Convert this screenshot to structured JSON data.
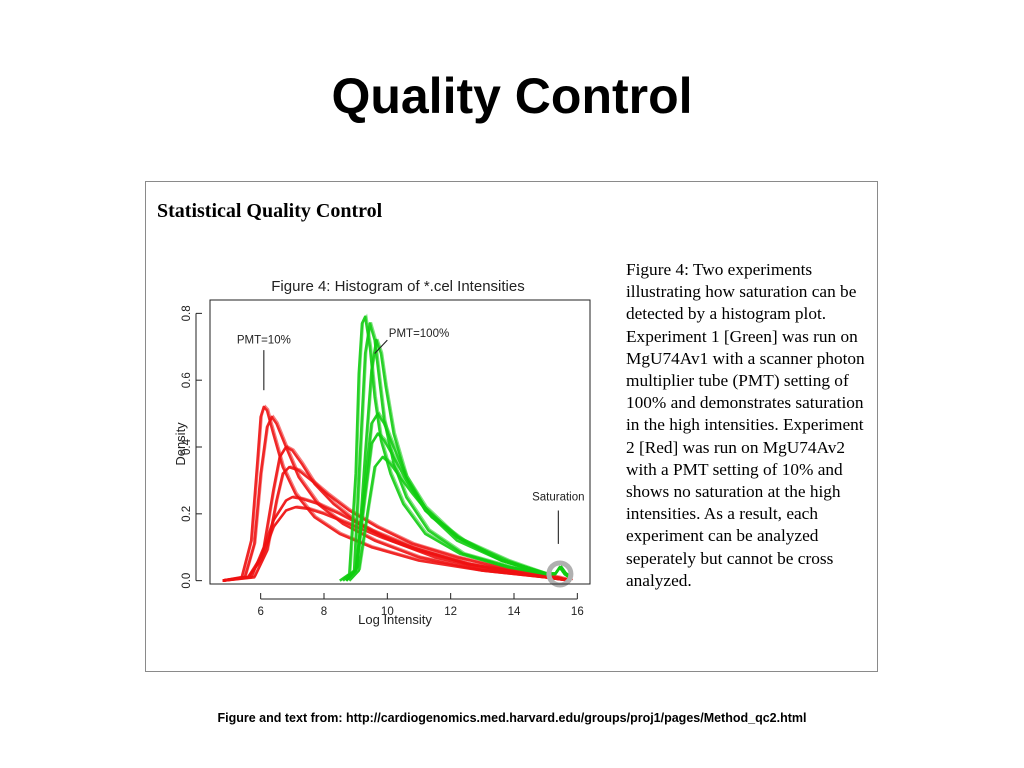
{
  "slide": {
    "title": "Quality Control",
    "source_note": "Figure and text from: http://cardiogenomics.med.harvard.edu/groups/proj1/pages/Method_qc2.html"
  },
  "panel": {
    "heading": "Statistical Quality Control",
    "caption": "Figure 4:   Two experiments illustrating how saturation can be detected by a histogram plot. Experiment 1 [Green] was run on MgU74Av1 with a scanner photon multiplier tube (PMT) setting of 100% and demonstrates saturation in the high intensities. Experiment 2 [Red] was run on MgU74Av2 with a PMT setting of 10% and shows no saturation at the high intensities. As a result, each experiment can be analyzed seperately but cannot be cross analyzed."
  },
  "chart_data": {
    "type": "line",
    "title": "Figure 4: Histogram of *.cel Intensities",
    "xlabel": "Log Intensity",
    "ylabel": "Density",
    "xlim": [
      4.4,
      16.4
    ],
    "ylim": [
      -0.01,
      0.84
    ],
    "xticks": [
      6,
      8,
      10,
      12,
      14,
      16
    ],
    "yticks": [
      0.0,
      0.2,
      0.4,
      0.6,
      0.8
    ],
    "grid": false,
    "colors": {
      "pmt10": "#ee1111",
      "pmt100": "#11cc11",
      "saturation_marker": "#b0b0b0"
    },
    "annotations": [
      {
        "id": "pmt10",
        "text": "PMT=10%",
        "x": 6.1,
        "y": 0.71
      },
      {
        "id": "pmt100",
        "text": "PMT=100%",
        "x": 11.0,
        "y": 0.73
      },
      {
        "id": "saturation",
        "text": "Saturation",
        "x": 15.4,
        "y": 0.24
      }
    ],
    "series": [
      {
        "x": [
          4.8,
          5.4,
          5.7,
          5.9,
          6.0,
          6.1,
          6.2,
          6.4,
          6.7,
          7.1,
          7.7,
          8.5,
          9.5,
          11.0,
          13.0,
          15.0,
          15.8
        ],
        "values": [
          0.0,
          0.01,
          0.12,
          0.36,
          0.49,
          0.52,
          0.51,
          0.44,
          0.34,
          0.26,
          0.19,
          0.14,
          0.1,
          0.06,
          0.03,
          0.01,
          0.0
        ],
        "group": "pmt10"
      },
      {
        "x": [
          4.8,
          5.5,
          5.8,
          6.0,
          6.2,
          6.35,
          6.5,
          6.8,
          7.2,
          7.8,
          8.6,
          9.6,
          11.0,
          13.0,
          15.0,
          15.8
        ],
        "values": [
          0.0,
          0.01,
          0.11,
          0.32,
          0.46,
          0.49,
          0.47,
          0.4,
          0.31,
          0.23,
          0.17,
          0.12,
          0.07,
          0.03,
          0.01,
          0.0
        ],
        "group": "pmt10"
      },
      {
        "x": [
          4.8,
          5.7,
          6.1,
          6.4,
          6.6,
          6.8,
          7.0,
          7.3,
          7.7,
          8.3,
          9.1,
          10.1,
          11.5,
          13.3,
          15.0,
          15.8
        ],
        "values": [
          0.0,
          0.01,
          0.1,
          0.27,
          0.37,
          0.4,
          0.39,
          0.35,
          0.29,
          0.23,
          0.17,
          0.12,
          0.07,
          0.03,
          0.01,
          0.0
        ],
        "group": "pmt10"
      },
      {
        "x": [
          4.8,
          5.8,
          6.2,
          6.5,
          6.7,
          6.9,
          7.2,
          7.6,
          8.1,
          8.8,
          9.7,
          10.8,
          12.2,
          14.0,
          15.4,
          15.8
        ],
        "values": [
          0.0,
          0.01,
          0.09,
          0.24,
          0.32,
          0.34,
          0.33,
          0.3,
          0.26,
          0.21,
          0.16,
          0.11,
          0.07,
          0.03,
          0.01,
          0.0
        ],
        "group": "pmt10"
      },
      {
        "x": [
          4.8,
          5.6,
          6.0,
          6.4,
          6.8,
          7.0,
          7.3,
          7.8,
          8.5,
          9.5,
          10.8,
          12.5,
          14.3,
          15.8
        ],
        "values": [
          0.0,
          0.01,
          0.07,
          0.18,
          0.24,
          0.25,
          0.245,
          0.23,
          0.2,
          0.15,
          0.1,
          0.05,
          0.02,
          0.0
        ],
        "group": "pmt10"
      },
      {
        "x": [
          4.8,
          5.6,
          6.0,
          6.4,
          6.8,
          7.1,
          7.5,
          8.0,
          8.8,
          9.8,
          11.0,
          12.6,
          14.4,
          15.8
        ],
        "values": [
          0.0,
          0.01,
          0.06,
          0.16,
          0.21,
          0.22,
          0.215,
          0.2,
          0.17,
          0.13,
          0.09,
          0.05,
          0.02,
          0.0
        ],
        "group": "pmt10"
      },
      {
        "x": [
          8.5,
          8.8,
          9.0,
          9.1,
          9.2,
          9.3,
          9.45,
          9.6,
          9.8,
          10.1,
          10.5,
          11.2,
          12.3,
          13.8,
          15.0,
          15.3,
          15.45,
          15.6,
          15.75
        ],
        "values": [
          0.0,
          0.02,
          0.32,
          0.62,
          0.77,
          0.79,
          0.7,
          0.55,
          0.42,
          0.32,
          0.23,
          0.14,
          0.08,
          0.04,
          0.02,
          0.02,
          0.04,
          0.02,
          0.01
        ],
        "group": "pmt100"
      },
      {
        "x": [
          8.6,
          8.95,
          9.15,
          9.3,
          9.45,
          9.6,
          9.75,
          9.9,
          10.2,
          10.6,
          11.3,
          12.4,
          13.9,
          15.0,
          15.3,
          15.45,
          15.6,
          15.75
        ],
        "values": [
          0.0,
          0.03,
          0.4,
          0.68,
          0.77,
          0.72,
          0.6,
          0.48,
          0.35,
          0.25,
          0.15,
          0.08,
          0.04,
          0.02,
          0.02,
          0.04,
          0.02,
          0.01
        ],
        "group": "pmt100"
      },
      {
        "x": [
          8.7,
          9.05,
          9.3,
          9.5,
          9.65,
          9.8,
          9.95,
          10.2,
          10.6,
          11.2,
          12.2,
          13.6,
          15.0,
          15.3,
          15.45,
          15.6,
          15.75
        ],
        "values": [
          0.0,
          0.04,
          0.38,
          0.63,
          0.72,
          0.68,
          0.58,
          0.44,
          0.31,
          0.21,
          0.12,
          0.06,
          0.02,
          0.02,
          0.04,
          0.02,
          0.01
        ],
        "group": "pmt100"
      },
      {
        "x": [
          8.7,
          9.0,
          9.3,
          9.5,
          9.7,
          9.9,
          10.2,
          10.6,
          11.2,
          12.2,
          13.6,
          15.0,
          15.3,
          15.45,
          15.6,
          15.75
        ],
        "values": [
          0.0,
          0.03,
          0.3,
          0.47,
          0.5,
          0.47,
          0.4,
          0.31,
          0.22,
          0.13,
          0.06,
          0.02,
          0.02,
          0.04,
          0.02,
          0.01
        ],
        "group": "pmt100"
      },
      {
        "x": [
          8.7,
          9.0,
          9.3,
          9.5,
          9.7,
          9.9,
          10.2,
          10.6,
          11.2,
          12.2,
          13.6,
          15.0,
          15.3,
          15.45,
          15.6,
          15.75
        ],
        "values": [
          0.0,
          0.03,
          0.26,
          0.41,
          0.44,
          0.42,
          0.37,
          0.3,
          0.21,
          0.13,
          0.06,
          0.02,
          0.02,
          0.04,
          0.02,
          0.01
        ],
        "group": "pmt100"
      },
      {
        "x": [
          8.8,
          9.1,
          9.4,
          9.6,
          9.85,
          10.1,
          10.4,
          10.8,
          11.4,
          12.4,
          13.8,
          15.0,
          15.3,
          15.45,
          15.6,
          15.75
        ],
        "values": [
          0.0,
          0.03,
          0.22,
          0.34,
          0.37,
          0.35,
          0.31,
          0.26,
          0.19,
          0.12,
          0.06,
          0.02,
          0.02,
          0.04,
          0.02,
          0.01
        ],
        "group": "pmt100"
      }
    ]
  }
}
